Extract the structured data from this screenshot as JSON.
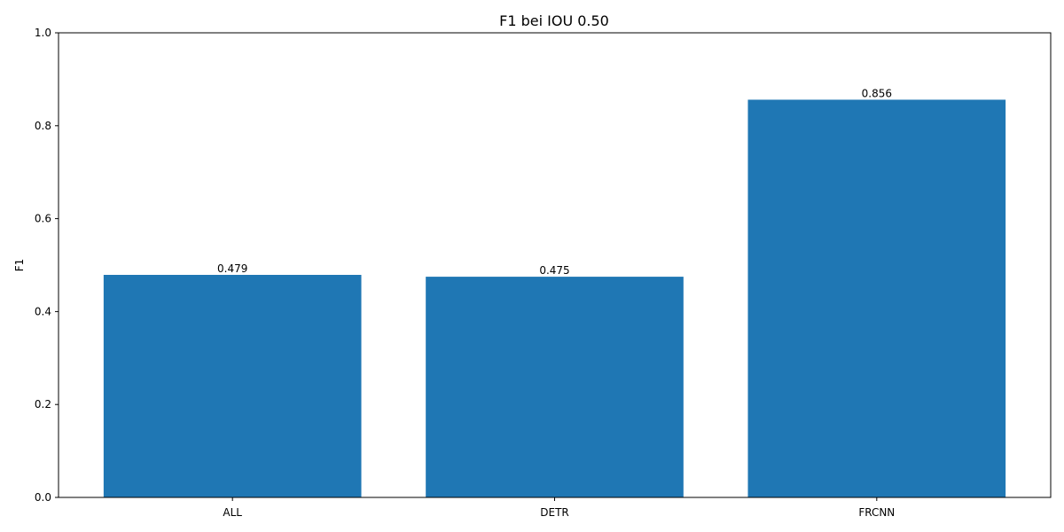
{
  "chart_data": {
    "type": "bar",
    "title": "F1 bei IOU 0.50",
    "xlabel": "",
    "ylabel": "F1",
    "categories": [
      "ALL",
      "DETR",
      "FRCNN"
    ],
    "values": [
      0.479,
      0.475,
      0.856
    ],
    "value_labels": [
      "0.479",
      "0.475",
      "0.856"
    ],
    "ylim": [
      0,
      1.0
    ],
    "yticks": [
      0.0,
      0.2,
      0.4,
      0.6,
      0.8,
      1.0
    ],
    "ytick_labels": [
      "0.0",
      "0.2",
      "0.4",
      "0.6",
      "0.8",
      "1.0"
    ],
    "grid": false,
    "bar_color": "#1f77b4"
  }
}
